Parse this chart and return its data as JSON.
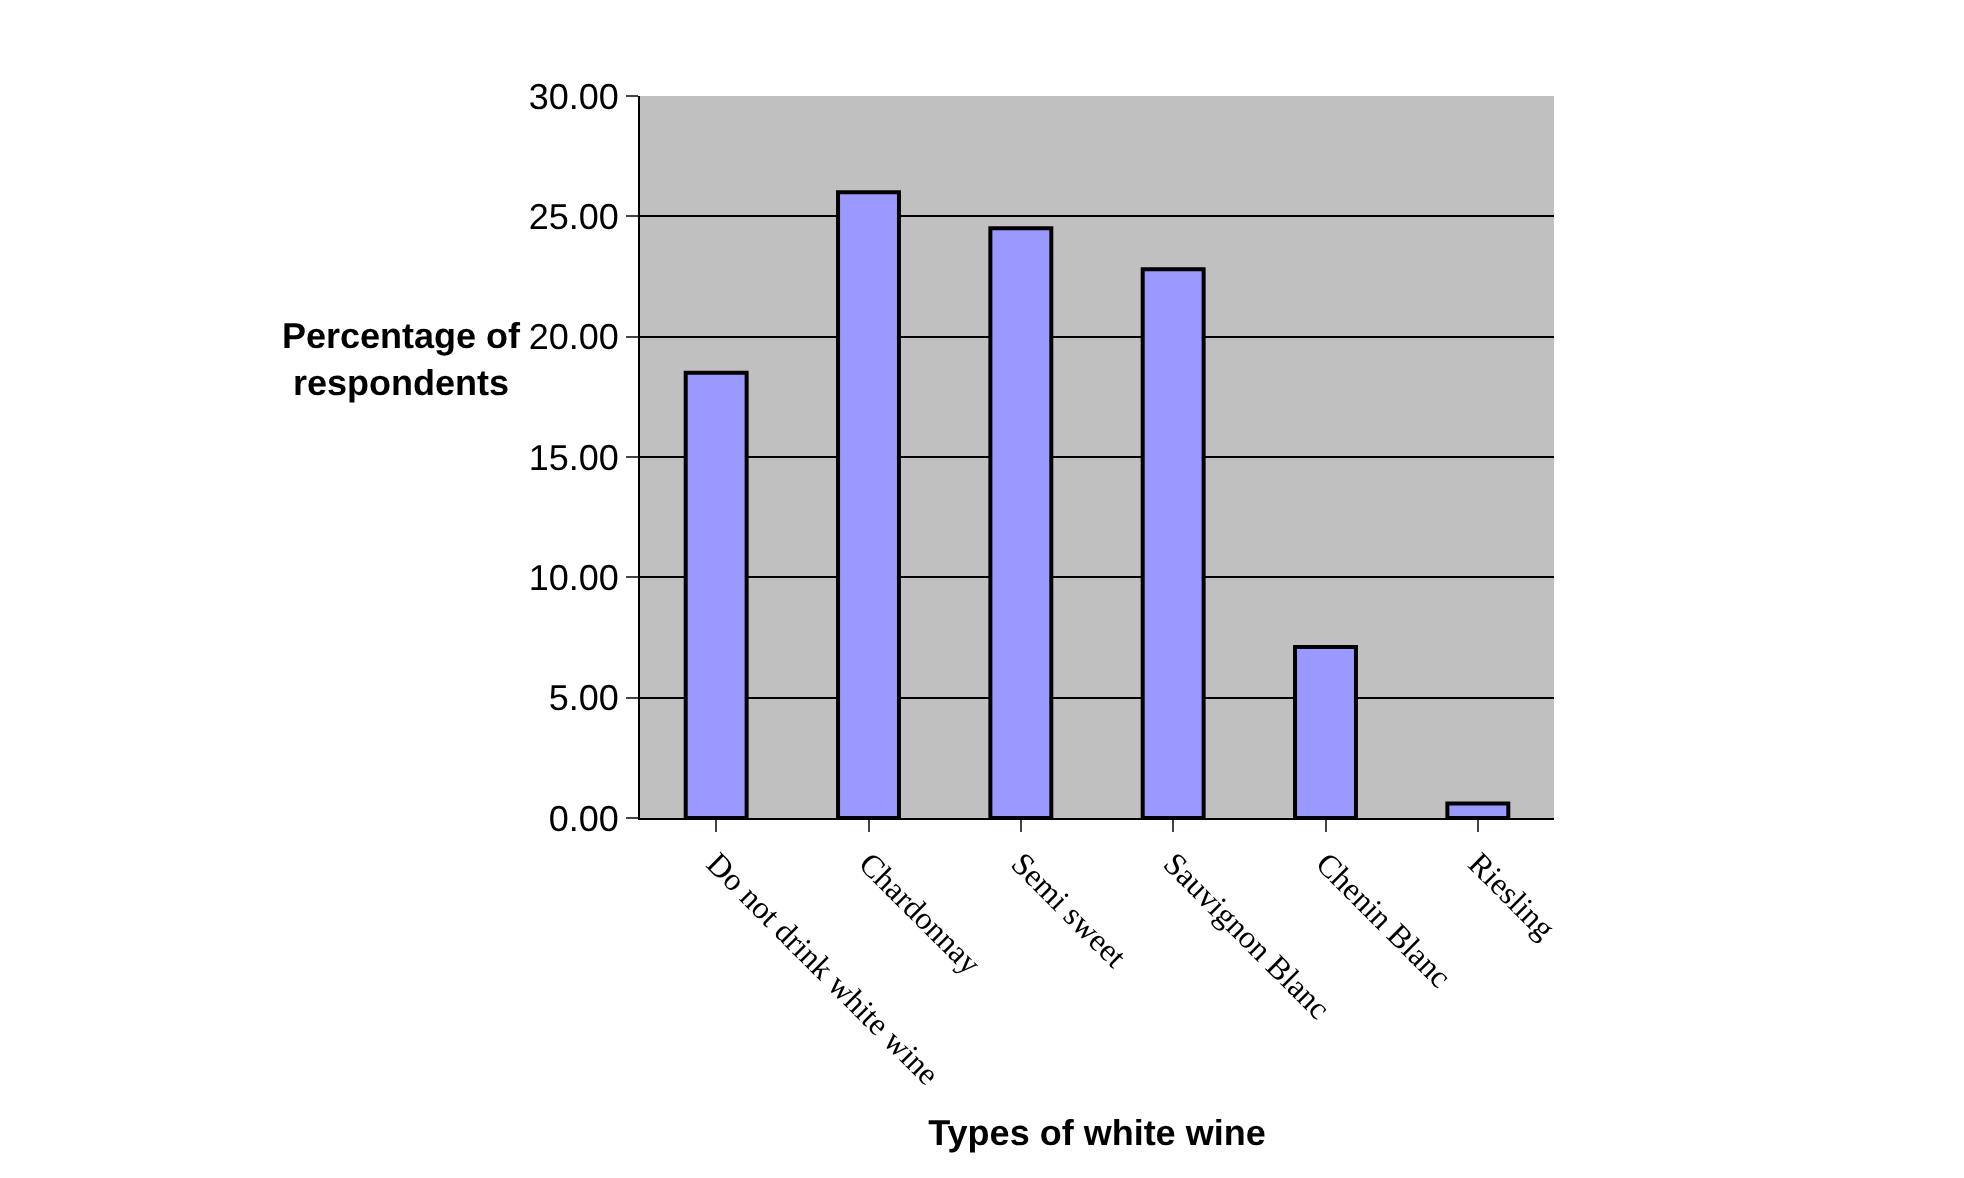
{
  "chart_data": {
    "type": "bar",
    "xlabel": "Types of white wine",
    "ylabel": "Percentage of respondents",
    "categories": [
      "Do not drink white wine",
      "Chardonnay",
      "Semi sweet",
      "Sauvignon Blanc",
      "Chenin Blanc",
      "Riesling"
    ],
    "values": [
      18.5,
      26.0,
      24.5,
      22.8,
      7.1,
      0.6
    ],
    "color": "#9999ff",
    "ylim": [
      0,
      30
    ],
    "yticks": [
      {
        "value": 0,
        "label": "0.00"
      },
      {
        "value": 5,
        "label": "5.00"
      },
      {
        "value": 10,
        "label": "10.00"
      },
      {
        "value": 15,
        "label": "15.00"
      },
      {
        "value": 20,
        "label": "20.00"
      },
      {
        "value": 25,
        "label": "25.00"
      },
      {
        "value": 30,
        "label": "30.00"
      }
    ],
    "grid": "y",
    "legend": false
  }
}
